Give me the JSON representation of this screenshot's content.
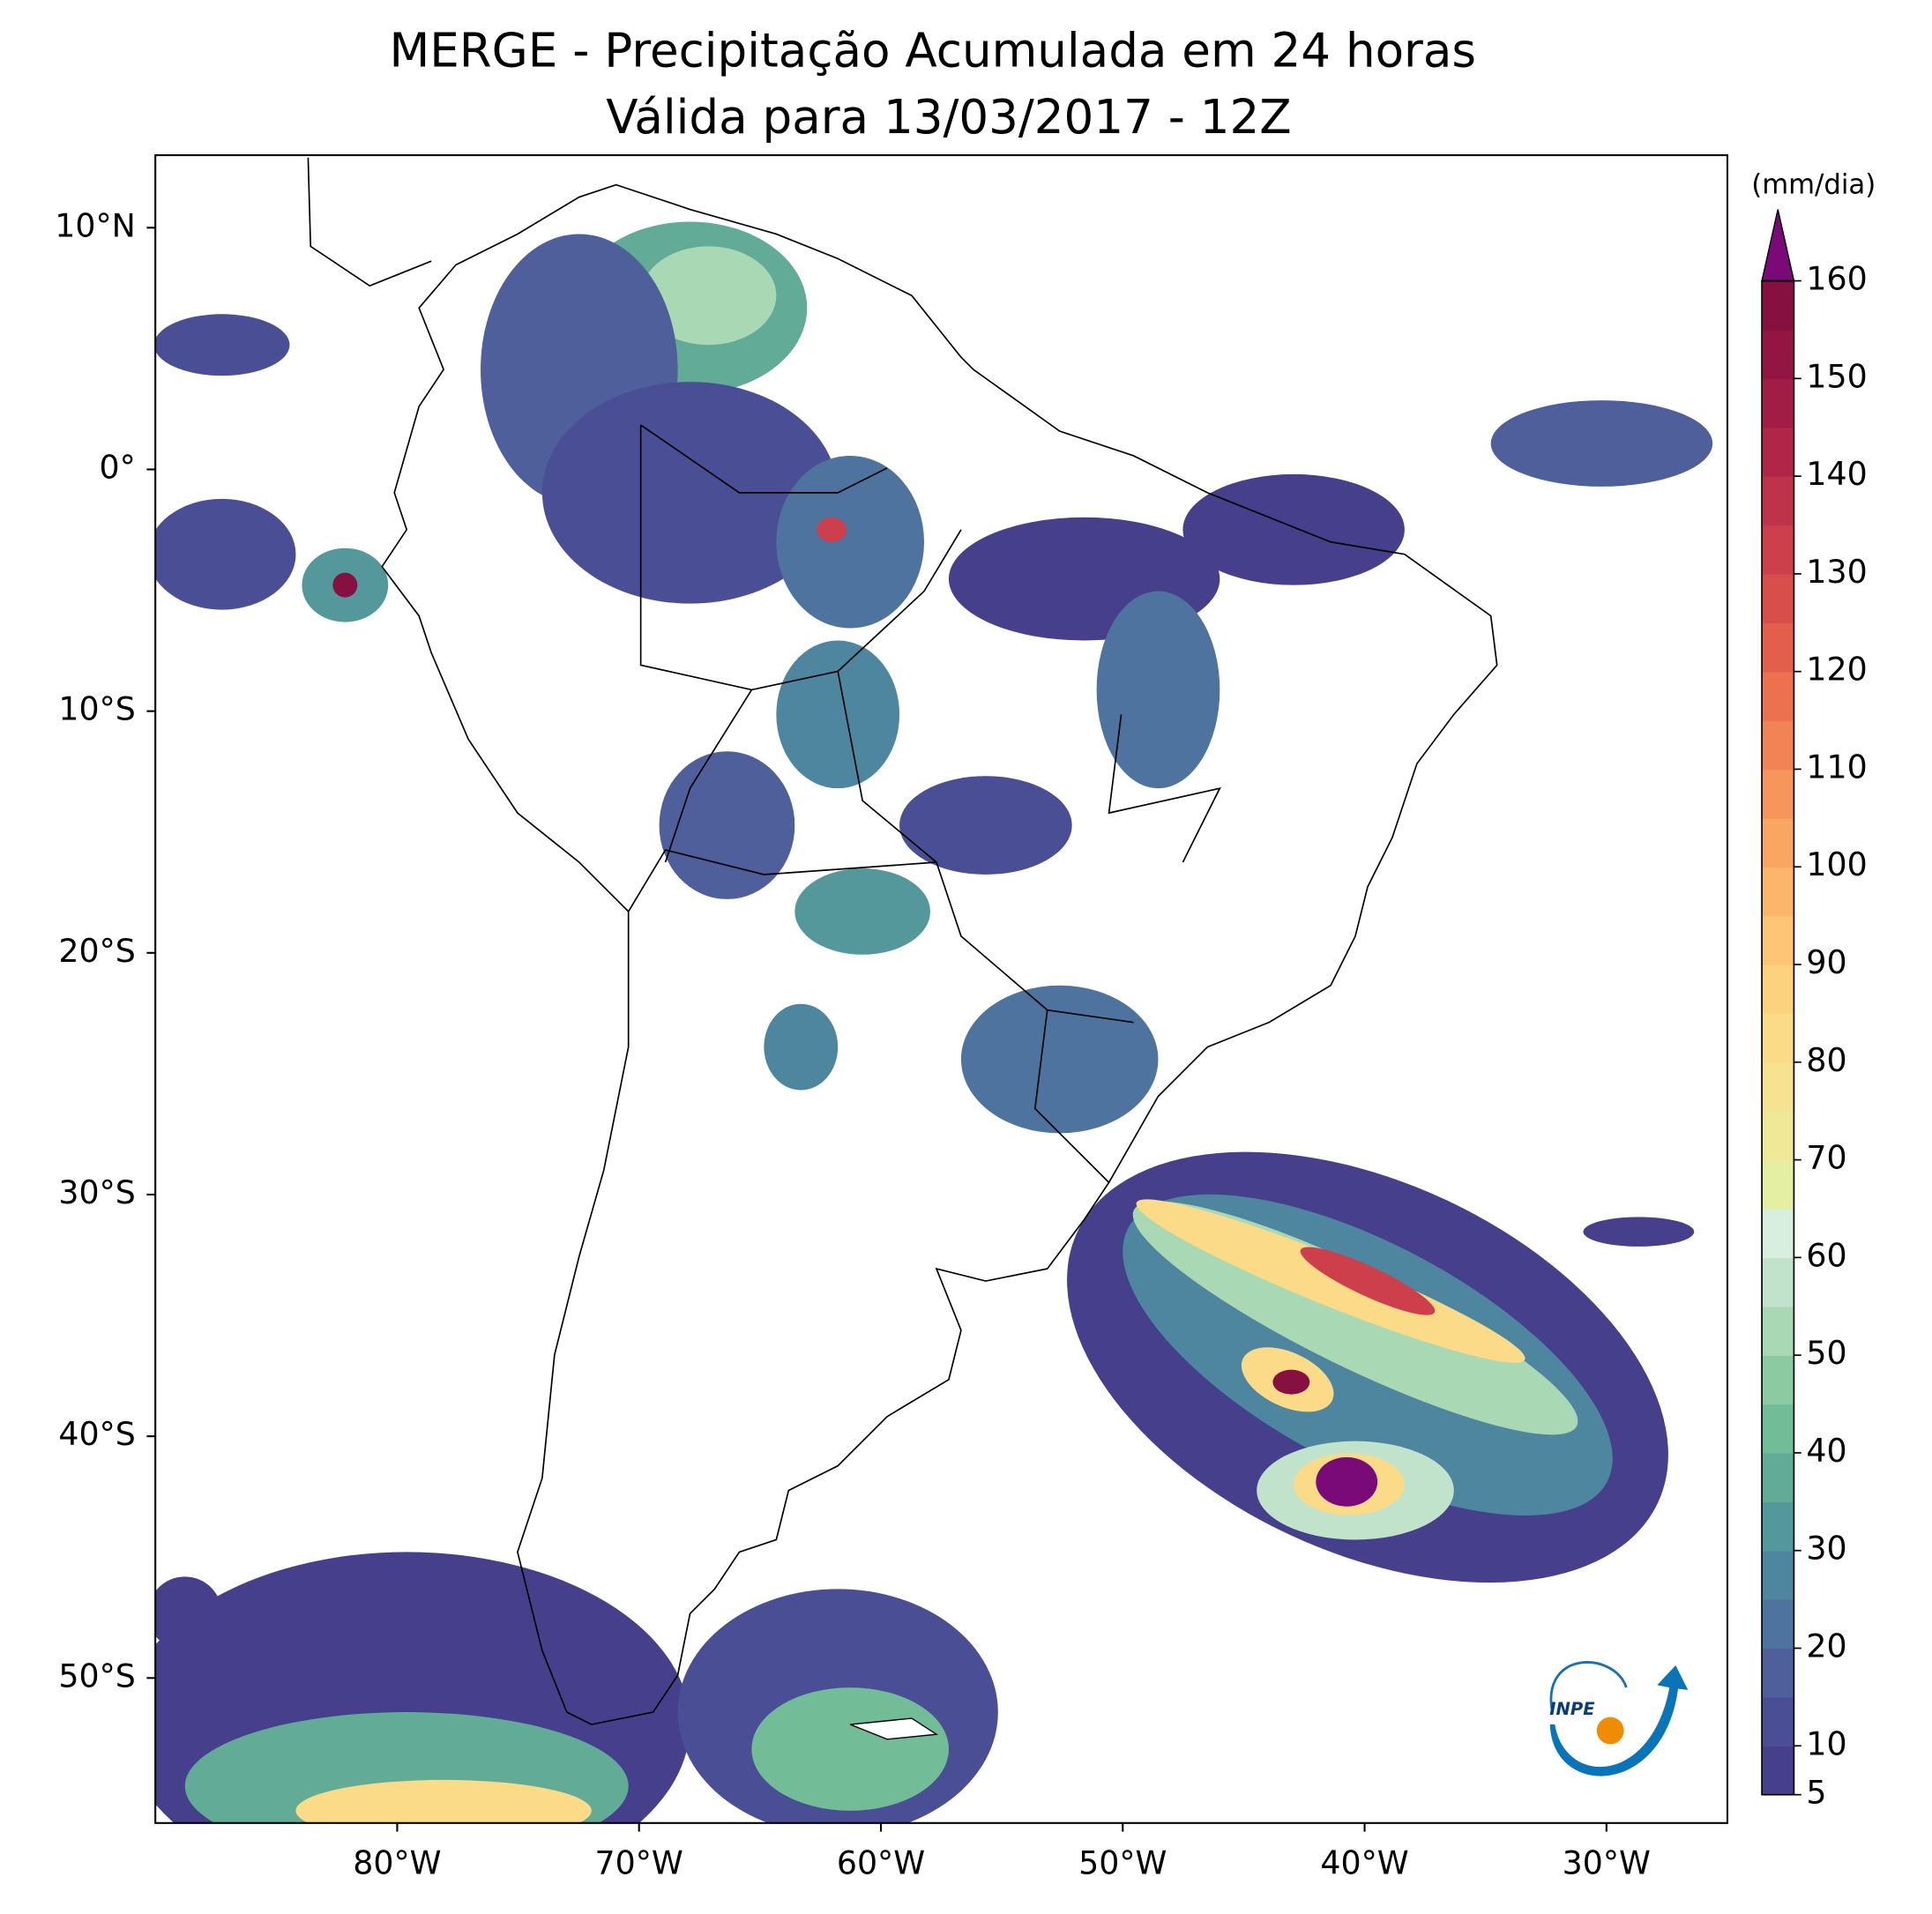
{
  "chart_data": {
    "type": "map",
    "title": "MERGE - Precipitação Acumulada em 24 horas",
    "subtitle": "Válida para 13/03/2017 - 12Z",
    "xlim": [
      -90,
      -25
    ],
    "ylim": [
      -56,
      13
    ],
    "xticks": [
      {
        "value": -80,
        "label": "80°W"
      },
      {
        "value": -70,
        "label": "70°W"
      },
      {
        "value": -60,
        "label": "60°W"
      },
      {
        "value": -50,
        "label": "50°W"
      },
      {
        "value": -40,
        "label": "40°W"
      },
      {
        "value": -30,
        "label": "30°W"
      }
    ],
    "yticks": [
      {
        "value": 10,
        "label": "10°N"
      },
      {
        "value": 0,
        "label": "0°"
      },
      {
        "value": -10,
        "label": "10°S"
      },
      {
        "value": -20,
        "label": "20°S"
      },
      {
        "value": -30,
        "label": "30°S"
      },
      {
        "value": -40,
        "label": "40°S"
      },
      {
        "value": -50,
        "label": "50°S"
      }
    ],
    "colorbar": {
      "label": "(mm/dia)",
      "lim": [
        5,
        160
      ],
      "ticks": [
        5,
        10,
        20,
        30,
        40,
        50,
        60,
        70,
        80,
        90,
        100,
        110,
        120,
        130,
        140,
        150,
        160
      ],
      "levels": [
        5,
        10,
        15,
        20,
        25,
        30,
        35,
        40,
        45,
        50,
        55,
        60,
        65,
        70,
        75,
        80,
        85,
        90,
        95,
        100,
        105,
        110,
        115,
        120,
        125,
        130,
        135,
        140,
        145,
        150,
        155,
        160
      ],
      "colors": [
        "#463f8c",
        "#4a4f95",
        "#4e5f9c",
        "#4f739f",
        "#4f869f",
        "#54989b",
        "#62ab97",
        "#72bd98",
        "#8ccba2",
        "#a8d8b4",
        "#c2e3cb",
        "#d8eede",
        "#e4efa4",
        "#eee897",
        "#f6e290",
        "#fbdb87",
        "#fdd27f",
        "#fdc576",
        "#fbb66c",
        "#f9a663",
        "#f6955c",
        "#f28355",
        "#ec714f",
        "#e35f4c",
        "#d84e4b",
        "#cc3f4b",
        "#be324a",
        "#b02648",
        "#a11d45",
        "#931642",
        "#86103f"
      ],
      "extend": "max",
      "extend_color": "#7a0a78"
    },
    "logo_text": "INPE"
  }
}
